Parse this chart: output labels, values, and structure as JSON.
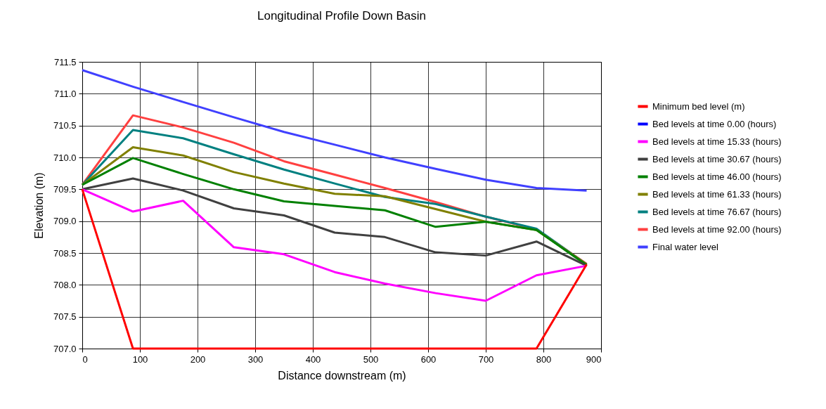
{
  "chart_data": {
    "type": "line",
    "title": "Longitudinal Profile Down Basin",
    "xlabel": "Distance downstream (m)",
    "ylabel": "Elevation (m)",
    "x": [
      0,
      88,
      175,
      263,
      350,
      438,
      525,
      613,
      700,
      788,
      875
    ],
    "series": [
      {
        "name": "Minimum bed level (m)",
        "color": "#ff0000",
        "values": [
          709.5,
          707.0,
          707.0,
          707.0,
          707.0,
          707.0,
          707.0,
          707.0,
          707.0,
          707.0,
          708.32
        ]
      },
      {
        "name": "Bed levels at time 0.00 (hours)",
        "color": "#0000ff",
        "values": [
          null,
          null,
          null,
          null,
          null,
          null,
          null,
          null,
          null,
          null,
          null
        ]
      },
      {
        "name": "Bed levels at time 15.33 (hours)",
        "color": "#ff00ff",
        "values": [
          709.5,
          709.15,
          709.32,
          708.59,
          708.48,
          708.2,
          708.02,
          707.87,
          707.75,
          708.15,
          708.3
        ]
      },
      {
        "name": "Bed levels at time 30.67 (hours)",
        "color": "#404040",
        "values": [
          709.5,
          709.67,
          709.48,
          709.2,
          709.09,
          708.82,
          708.75,
          708.51,
          708.46,
          708.68,
          708.3
        ]
      },
      {
        "name": "Bed levels at time 46.00 (hours)",
        "color": "#008000",
        "values": [
          709.57,
          709.99,
          709.74,
          709.5,
          709.31,
          709.24,
          709.17,
          708.91,
          708.99,
          708.86,
          708.31
        ]
      },
      {
        "name": "Bed levels at time 61.33 (hours)",
        "color": "#808000",
        "values": [
          709.57,
          710.16,
          710.03,
          709.77,
          709.59,
          709.43,
          709.39,
          709.19,
          708.99,
          708.86,
          708.32
        ]
      },
      {
        "name": "Bed levels at time 76.67 (hours)",
        "color": "#008080",
        "values": [
          709.57,
          710.43,
          710.3,
          710.05,
          709.81,
          709.59,
          709.38,
          709.27,
          709.07,
          708.88,
          708.32
        ]
      },
      {
        "name": "Bed levels at time 92.00 (hours)",
        "color": "#ff4040",
        "values": [
          709.57,
          710.66,
          710.47,
          710.23,
          709.94,
          709.73,
          709.52,
          709.3,
          709.07,
          708.87,
          708.33
        ]
      },
      {
        "name": "Final water level",
        "color": "#4040ff",
        "values": [
          711.37,
          711.11,
          710.87,
          710.63,
          710.4,
          710.2,
          710.0,
          709.82,
          709.65,
          709.52,
          709.48
        ]
      }
    ],
    "xlim": [
      0,
      900
    ],
    "xticks": [
      0,
      100,
      200,
      300,
      400,
      500,
      600,
      700,
      800,
      900
    ],
    "ylim": [
      707,
      711.5
    ],
    "yticks": [
      {
        "value": 707,
        "label": "707.0"
      },
      707.5,
      {
        "value": 708,
        "label": "708.0"
      },
      708.5,
      {
        "value": 709,
        "label": "709.0"
      },
      709.5,
      {
        "value": 710,
        "label": "710.0"
      },
      710.5,
      {
        "value": 711,
        "label": "711.0"
      },
      711.5
    ],
    "grid": true,
    "legend": "right",
    "marker": "none",
    "line_style": "solid"
  }
}
